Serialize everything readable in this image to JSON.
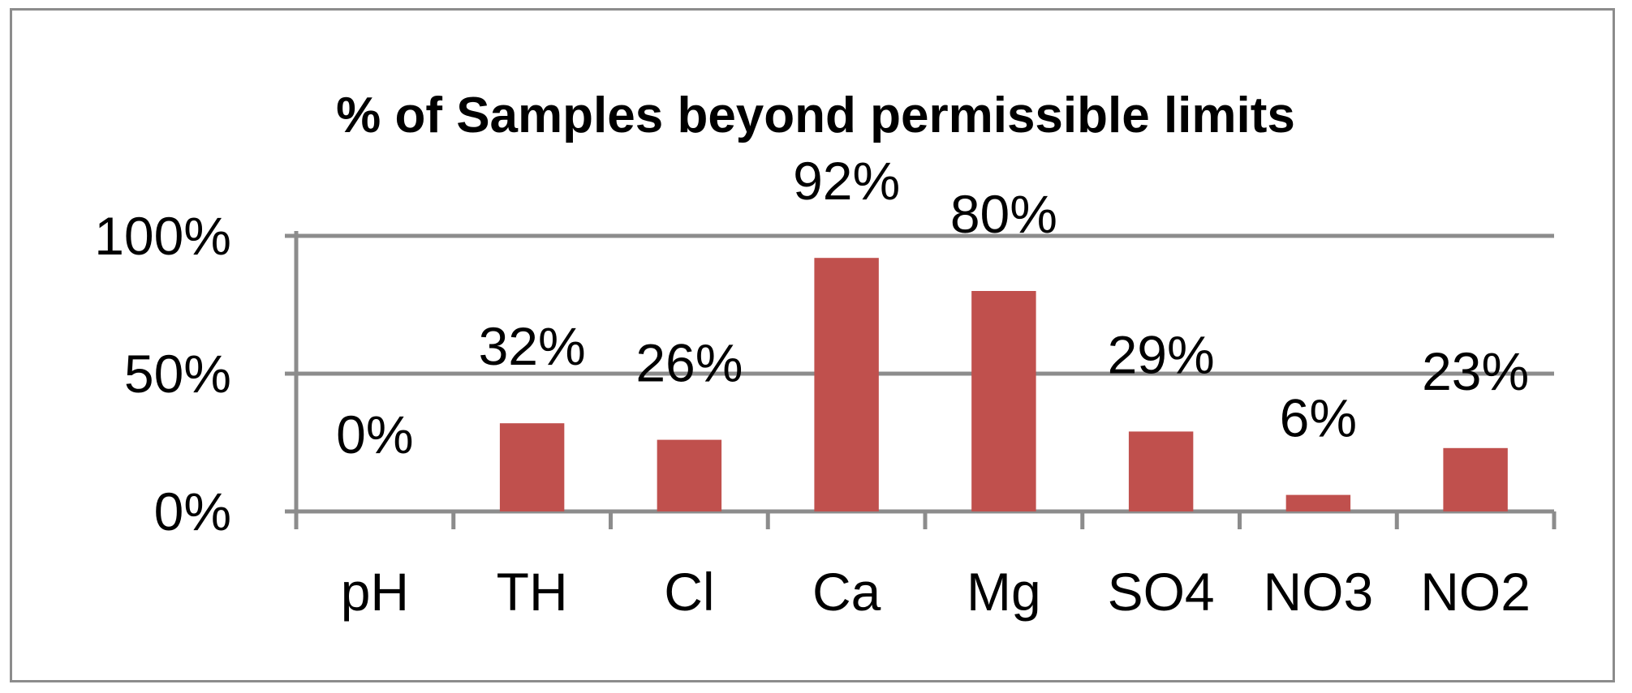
{
  "chart_data": {
    "type": "bar",
    "title": "% of Samples beyond permissible limits",
    "xlabel": "",
    "ylabel": "",
    "categories": [
      "pH",
      "TH",
      "Cl",
      "Ca",
      "Mg",
      "SO4",
      "NO3",
      "NO2"
    ],
    "values": [
      0,
      32,
      26,
      92,
      80,
      29,
      6,
      23
    ],
    "data_labels": [
      "0%",
      "32%",
      "26%",
      "92%",
      "80%",
      "29%",
      "6%",
      "23%"
    ],
    "ylim": [
      0,
      100
    ],
    "y_ticks": [
      0,
      50,
      100
    ],
    "y_tick_labels": [
      "0%",
      "50%",
      "100%"
    ],
    "grid": true,
    "legend": "none",
    "bar_color": "#C0504D",
    "grid_color": "#8C8C8C"
  }
}
